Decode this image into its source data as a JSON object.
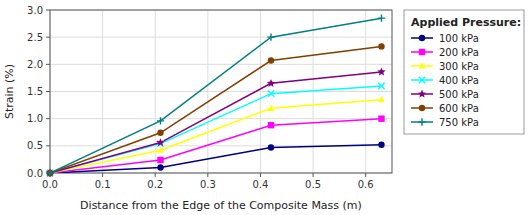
{
  "chart_data": {
    "type": "line",
    "xlabel": "Distance from the Edge of the Composite Mass (m)",
    "ylabel": "Strain (%)",
    "legend_title": "Applied Pressure:",
    "xlim": [
      0.0,
      0.65
    ],
    "ylim": [
      0.0,
      3.0
    ],
    "xticks": [
      {
        "value": 0.0,
        "label": "0.0"
      },
      0.1,
      0.2,
      0.3,
      0.4,
      0.5,
      0.6
    ],
    "yticks": [
      {
        "value": 0.0,
        "label": "0.0"
      },
      0.5,
      {
        "value": 1.0,
        "label": "1.0"
      },
      1.5,
      {
        "value": 2.0,
        "label": "2.0"
      },
      2.5,
      {
        "value": 3.0,
        "label": "3.0"
      }
    ],
    "x": [
      0.0,
      0.21,
      0.42,
      0.63
    ],
    "series": [
      {
        "name": "100 kPa",
        "color": "#000080",
        "marker": "circle",
        "values": [
          0.0,
          0.1,
          0.47,
          0.52
        ]
      },
      {
        "name": "200 kPa",
        "color": "#FF00FF",
        "marker": "square",
        "values": [
          0.0,
          0.24,
          0.88,
          1.0
        ]
      },
      {
        "name": "300 kPa",
        "color": "#FFFF00",
        "marker": "triangle",
        "values": [
          0.0,
          0.42,
          1.19,
          1.35
        ]
      },
      {
        "name": "400 kPa",
        "color": "#00FFFF",
        "marker": "x",
        "values": [
          0.0,
          0.54,
          1.46,
          1.6
        ]
      },
      {
        "name": "500 kPa",
        "color": "#800080",
        "marker": "star",
        "values": [
          0.0,
          0.56,
          1.65,
          1.86
        ]
      },
      {
        "name": "600 kPa",
        "color": "#804000",
        "marker": "circle",
        "values": [
          0.0,
          0.74,
          2.07,
          2.33
        ]
      },
      {
        "name": "750 kPa",
        "color": "#008080",
        "marker": "plus",
        "values": [
          0.0,
          0.96,
          2.5,
          2.85
        ]
      }
    ],
    "grid": true,
    "legend": "right"
  }
}
